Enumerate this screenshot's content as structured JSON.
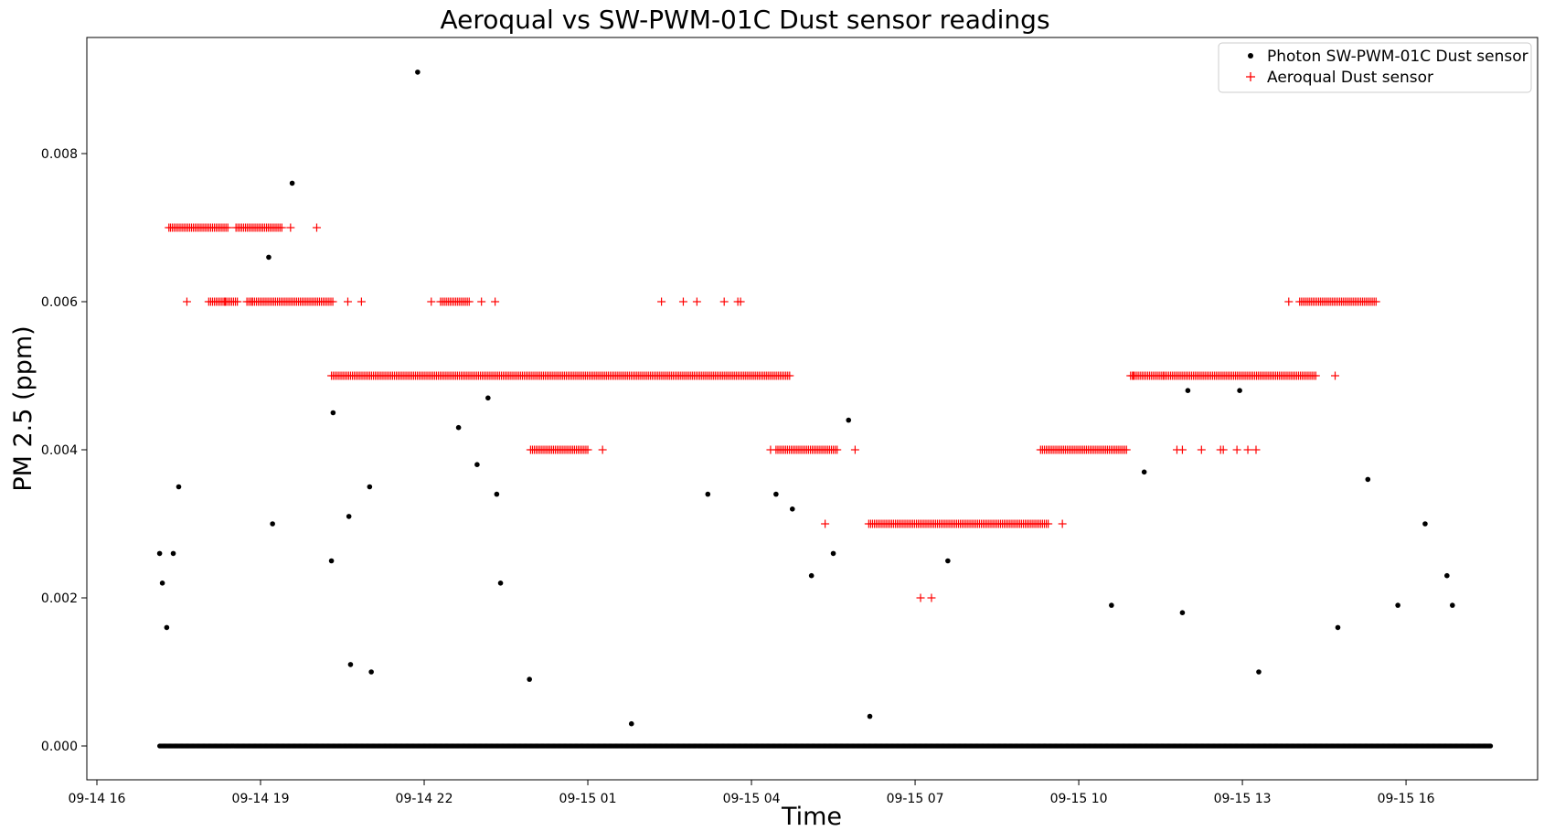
{
  "chart_data": {
    "type": "scatter",
    "title": "Aeroqual vs SW-PWM-01C Dust sensor readings",
    "xlabel": "Time",
    "ylabel": "PM 2.5 (ppm)",
    "x_unit": "hours since 09-14 16:00",
    "xlim": [
      0,
      26
    ],
    "ylim": [
      -0.00045,
      0.00955
    ],
    "x_ticks": [
      {
        "value": 0,
        "label": "09-14 16"
      },
      {
        "value": 3,
        "label": "09-14 19"
      },
      {
        "value": 6,
        "label": "09-14 22"
      },
      {
        "value": 9,
        "label": "09-15 01"
      },
      {
        "value": 12,
        "label": "09-15 04"
      },
      {
        "value": 15,
        "label": "09-15 07"
      },
      {
        "value": 18,
        "label": "09-15 10"
      },
      {
        "value": 21,
        "label": "09-15 13"
      },
      {
        "value": 24,
        "label": "09-15 16"
      }
    ],
    "y_ticks": [
      {
        "value": 0.0,
        "label": "0.000"
      },
      {
        "value": 0.002,
        "label": "0.002"
      },
      {
        "value": 0.004,
        "label": "0.004"
      },
      {
        "value": 0.006,
        "label": "0.006"
      },
      {
        "value": 0.008,
        "label": "0.008"
      }
    ],
    "grid": false,
    "legend": {
      "position": "top-right"
    },
    "series": [
      {
        "name": "Photon SW-PWM-01C Dust sensor",
        "marker": "dot",
        "color": "#000000",
        "baseline": {
          "value": 0.0,
          "x_start": 1.15,
          "x_end": 25.55
        },
        "points": [
          [
            1.15,
            0.0026
          ],
          [
            1.2,
            0.0022
          ],
          [
            1.28,
            0.0016
          ],
          [
            1.4,
            0.0026
          ],
          [
            1.5,
            0.0035
          ],
          [
            3.15,
            0.0066
          ],
          [
            3.22,
            0.003
          ],
          [
            3.58,
            0.0076
          ],
          [
            4.3,
            0.0025
          ],
          [
            4.33,
            0.0045
          ],
          [
            4.62,
            0.0031
          ],
          [
            4.65,
            0.0011
          ],
          [
            5.0,
            0.0035
          ],
          [
            5.03,
            0.001
          ],
          [
            5.88,
            0.0091
          ],
          [
            6.63,
            0.0043
          ],
          [
            6.97,
            0.0038
          ],
          [
            7.17,
            0.0047
          ],
          [
            7.33,
            0.0034
          ],
          [
            7.4,
            0.0022
          ],
          [
            7.93,
            0.0009
          ],
          [
            9.8,
            0.0003
          ],
          [
            11.2,
            0.0034
          ],
          [
            12.45,
            0.0034
          ],
          [
            12.75,
            0.0032
          ],
          [
            13.1,
            0.0023
          ],
          [
            13.5,
            0.0026
          ],
          [
            13.78,
            0.0044
          ],
          [
            14.17,
            0.0004
          ],
          [
            15.6,
            0.0025
          ],
          [
            18.6,
            0.0019
          ],
          [
            19.2,
            0.0037
          ],
          [
            19.9,
            0.0018
          ],
          [
            20.0,
            0.0048
          ],
          [
            20.95,
            0.0048
          ],
          [
            21.3,
            0.001
          ],
          [
            22.75,
            0.0016
          ],
          [
            23.3,
            0.0036
          ],
          [
            23.85,
            0.0019
          ],
          [
            24.35,
            0.003
          ],
          [
            24.75,
            0.0023
          ],
          [
            24.85,
            0.0019
          ]
        ]
      },
      {
        "name": "Aeroqual Dust sensor",
        "marker": "plus",
        "color": "#ff0000",
        "runs": [
          {
            "y": 0.007,
            "x_start": 1.35,
            "x_end": 2.4
          },
          {
            "y": 0.007,
            "x_start": 2.55,
            "x_end": 3.4
          },
          {
            "y": 0.006,
            "x_start": 2.75,
            "x_end": 4.35
          },
          {
            "y": 0.006,
            "x_start": 2.05,
            "x_end": 2.6
          },
          {
            "y": 0.005,
            "x_start": 4.3,
            "x_end": 12.7
          },
          {
            "y": 0.006,
            "x_start": 6.3,
            "x_end": 6.85
          },
          {
            "y": 0.004,
            "x_start": 7.95,
            "x_end": 9.0
          },
          {
            "y": 0.004,
            "x_start": 12.45,
            "x_end": 13.6
          },
          {
            "y": 0.003,
            "x_start": 14.15,
            "x_end": 17.45
          },
          {
            "y": 0.004,
            "x_start": 17.3,
            "x_end": 18.9
          },
          {
            "y": 0.005,
            "x_start": 18.95,
            "x_end": 22.35
          },
          {
            "y": 0.006,
            "x_start": 22.05,
            "x_end": 23.45
          }
        ],
        "points": [
          [
            1.32,
            0.007
          ],
          [
            3.55,
            0.007
          ],
          [
            4.03,
            0.007
          ],
          [
            1.65,
            0.006
          ],
          [
            2.35,
            0.006
          ],
          [
            2.85,
            0.006
          ],
          [
            4.6,
            0.006
          ],
          [
            4.85,
            0.006
          ],
          [
            6.13,
            0.006
          ],
          [
            7.05,
            0.006
          ],
          [
            7.3,
            0.006
          ],
          [
            9.27,
            0.004
          ],
          [
            10.35,
            0.006
          ],
          [
            10.75,
            0.006
          ],
          [
            11.0,
            0.006
          ],
          [
            11.5,
            0.006
          ],
          [
            11.75,
            0.006
          ],
          [
            11.8,
            0.006
          ],
          [
            12.35,
            0.004
          ],
          [
            13.9,
            0.004
          ],
          [
            13.35,
            0.003
          ],
          [
            17.7,
            0.003
          ],
          [
            15.1,
            0.002
          ],
          [
            15.3,
            0.002
          ],
          [
            19.0,
            0.005
          ],
          [
            19.55,
            0.005
          ],
          [
            19.8,
            0.004
          ],
          [
            19.9,
            0.004
          ],
          [
            20.25,
            0.004
          ],
          [
            20.6,
            0.004
          ],
          [
            20.65,
            0.004
          ],
          [
            20.9,
            0.004
          ],
          [
            21.1,
            0.004
          ],
          [
            21.25,
            0.004
          ],
          [
            22.7,
            0.005
          ],
          [
            21.85,
            0.006
          ]
        ]
      }
    ]
  }
}
